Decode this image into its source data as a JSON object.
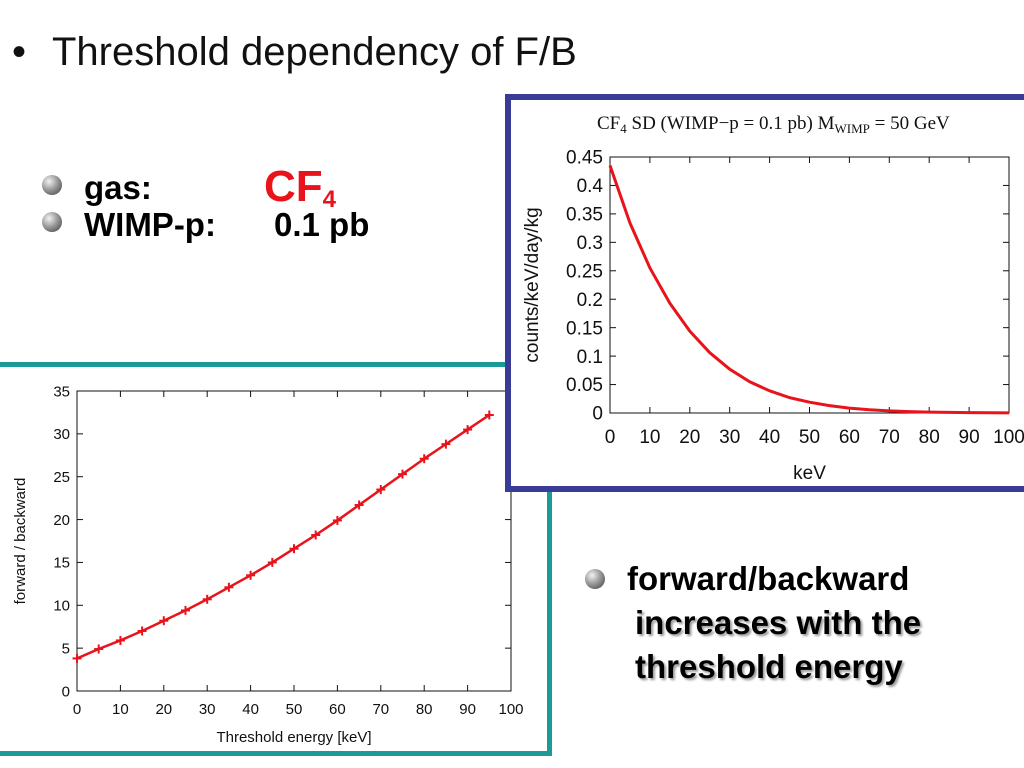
{
  "slide": {
    "bullet": "•",
    "title": "Threshold dependency of F/B"
  },
  "info": {
    "gas_label": "gas:",
    "gas_formula": "CF",
    "gas_subscript": "4",
    "wimp_label": "WIMP-p:",
    "wimp_value": "0.1 pb"
  },
  "finding": {
    "line1": "forward/backward",
    "line2": "increases with the",
    "line3": "threshold energy"
  },
  "colors": {
    "curve": "#e8131b",
    "accent_left_frame": "#1a9a98",
    "accent_right_frame": "#383c96",
    "formula": "#e8131b"
  },
  "chart_data": [
    {
      "id": "fb-vs-threshold",
      "type": "line",
      "title": "",
      "xlabel": "Threshold energy [keV]",
      "ylabel": "forward / backward",
      "xlim": [
        0,
        100
      ],
      "ylim": [
        0,
        35
      ],
      "xticks": [
        0,
        10,
        20,
        30,
        40,
        50,
        60,
        70,
        80,
        90,
        100
      ],
      "yticks": [
        0,
        5,
        10,
        15,
        20,
        25,
        30,
        35
      ],
      "grid": false,
      "marker": "plus",
      "series": [
        {
          "x": [
            0,
            5,
            10,
            15,
            20,
            25,
            30,
            35,
            40,
            45,
            50,
            55,
            60,
            65,
            70,
            75,
            80,
            85,
            90,
            95
          ],
          "y": [
            3.8,
            4.9,
            5.9,
            7.0,
            8.2,
            9.4,
            10.7,
            12.1,
            13.5,
            15.0,
            16.6,
            18.2,
            19.9,
            21.7,
            23.5,
            25.3,
            27.1,
            28.8,
            30.5,
            32.2
          ]
        }
      ]
    },
    {
      "id": "rate-vs-energy",
      "type": "line",
      "title_parts": [
        "CF",
        "4",
        " SD (WIMP−p = 0.1 pb) M",
        "WIMP",
        " = 50 GeV"
      ],
      "xlabel": "keV",
      "ylabel": "counts/keV/day/kg",
      "xlim": [
        0,
        100
      ],
      "ylim": [
        0,
        0.45
      ],
      "xticks": [
        0,
        10,
        20,
        30,
        40,
        50,
        60,
        70,
        80,
        90,
        100
      ],
      "yticks": [
        0,
        0.05,
        0.1,
        0.15,
        0.2,
        0.25,
        0.3,
        0.35,
        0.4,
        0.45
      ],
      "grid": false,
      "series": [
        {
          "x": [
            0,
            5,
            10,
            15,
            20,
            25,
            30,
            35,
            40,
            45,
            50,
            55,
            60,
            65,
            70,
            75,
            80,
            85,
            90,
            95,
            100
          ],
          "y": [
            0.435,
            0.334,
            0.255,
            0.193,
            0.144,
            0.106,
            0.077,
            0.055,
            0.039,
            0.027,
            0.019,
            0.013,
            0.0086,
            0.0057,
            0.0037,
            0.0024,
            0.0015,
            0.001,
            0.0006,
            0.0004,
            0.0002
          ]
        }
      ]
    }
  ]
}
